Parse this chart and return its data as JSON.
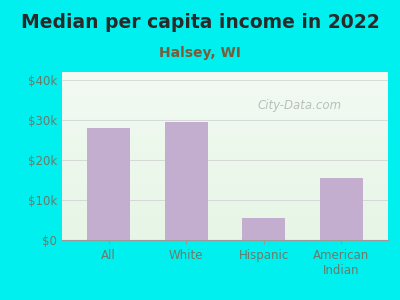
{
  "title": "Median per capita income in 2022",
  "subtitle": "Halsey, WI",
  "categories": [
    "All",
    "White",
    "Hispanic",
    "American\nIndian"
  ],
  "values": [
    28000,
    29500,
    5500,
    15500
  ],
  "bar_color": "#c4aed0",
  "background_outer": "#00f0f0",
  "title_color": "#2a2a2a",
  "subtitle_color": "#7a5c3a",
  "tick_color": "#6a7a6a",
  "ylim": [
    0,
    42000
  ],
  "yticks": [
    0,
    10000,
    20000,
    30000,
    40000
  ],
  "ytick_labels": [
    "$0",
    "$10k",
    "$20k",
    "$30k",
    "$40k"
  ],
  "watermark": "City-Data.com",
  "title_fontsize": 13.5,
  "subtitle_fontsize": 10,
  "tick_fontsize": 8.5
}
